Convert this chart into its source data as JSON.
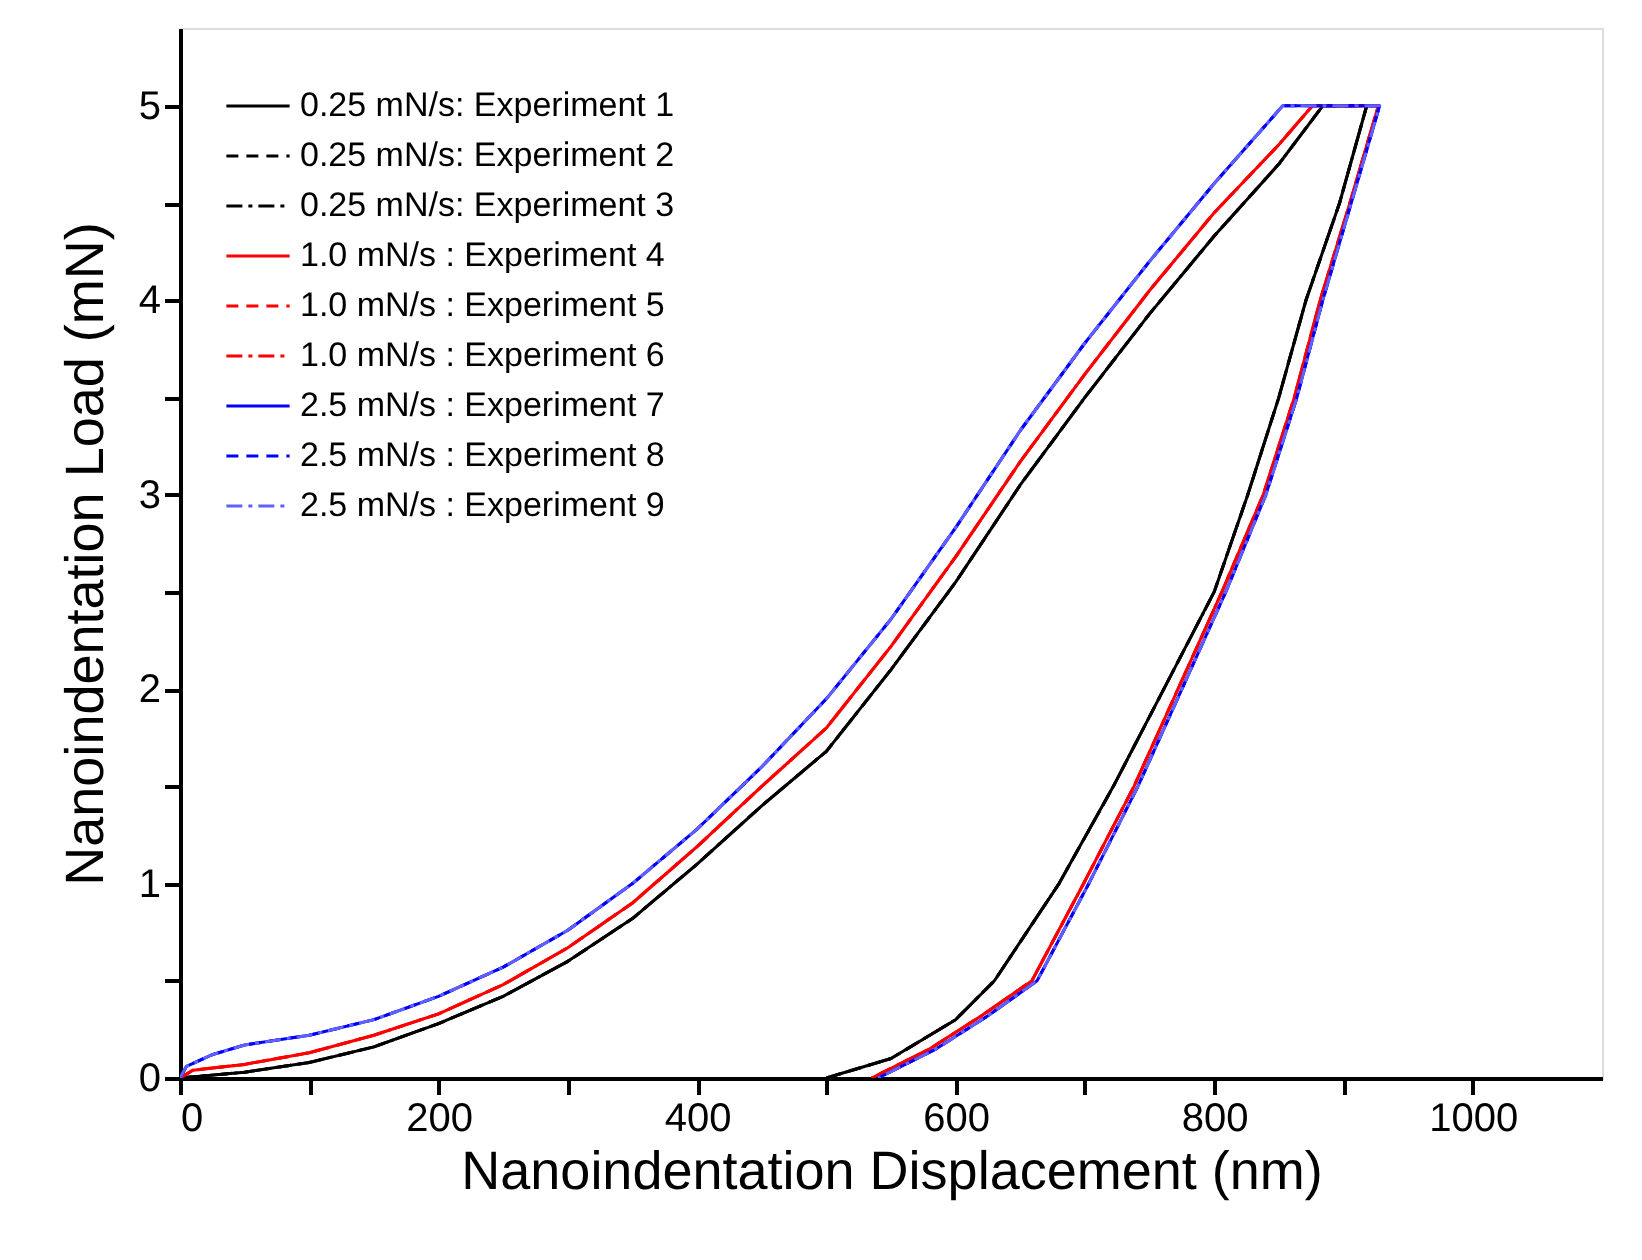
{
  "chart_data": {
    "type": "line",
    "xlabel": "Nanoindentation Displacement (nm)",
    "ylabel": "Nanoindentation Load (mN)",
    "xlim": [
      0,
      1100
    ],
    "ylim": [
      0,
      5.4
    ],
    "xticks": [
      0,
      {
        "value": 100,
        "label": null
      },
      200,
      {
        "value": 300,
        "label": null
      },
      400,
      {
        "value": 500,
        "label": null
      },
      600,
      {
        "value": 700,
        "label": null
      },
      800,
      {
        "value": 900,
        "label": null
      },
      1000
    ],
    "yticks": [
      0,
      {
        "value": 0.5,
        "label": null
      },
      1,
      {
        "value": 1.5,
        "label": null
      },
      2,
      {
        "value": 2.5,
        "label": null
      },
      3,
      {
        "value": 3.5,
        "label": null
      },
      4,
      {
        "value": 4.5,
        "label": null
      },
      5
    ],
    "grid": false,
    "legend": "top left",
    "marker": "none",
    "series": [
      {
        "name": "0.25 mN/s: Experiment 1",
        "color": "#000000",
        "line_style": "solid",
        "x": [
          0,
          50,
          100,
          150,
          200,
          250,
          300,
          350,
          400,
          450,
          500,
          550,
          600,
          650,
          700,
          750,
          800,
          850,
          884,
          918,
          897,
          871,
          850,
          826,
          800,
          761,
          722,
          680,
          630,
          600,
          550,
          500
        ],
        "values": [
          0,
          0.03,
          0.08,
          0.16,
          0.28,
          0.42,
          0.6,
          0.82,
          1.1,
          1.4,
          1.68,
          2.1,
          2.55,
          3.05,
          3.5,
          3.93,
          4.33,
          4.7,
          5.0,
          5.0,
          4.5,
          4.0,
          3.5,
          3.0,
          2.5,
          2.0,
          1.5,
          1.0,
          0.5,
          0.3,
          0.1,
          0
        ]
      },
      {
        "name": "0.25 mN/s: Experiment 2",
        "color": "#000000",
        "line_style": "dashed",
        "x": [
          0,
          50,
          100,
          150,
          200,
          250,
          300,
          350,
          400,
          450,
          500,
          550,
          600,
          650,
          700,
          750,
          800,
          850,
          884,
          918,
          897,
          871,
          850,
          826,
          800,
          761,
          722,
          680,
          630,
          600,
          550,
          500
        ],
        "values": [
          0,
          0.03,
          0.08,
          0.16,
          0.28,
          0.42,
          0.6,
          0.82,
          1.1,
          1.4,
          1.68,
          2.1,
          2.55,
          3.05,
          3.5,
          3.93,
          4.33,
          4.7,
          5.0,
          5.0,
          4.5,
          4.0,
          3.5,
          3.0,
          2.5,
          2.0,
          1.5,
          1.0,
          0.5,
          0.3,
          0.1,
          0
        ]
      },
      {
        "name": "0.25 mN/s: Experiment 3",
        "color": "#000000",
        "line_style": "dashdot",
        "x": [
          0,
          50,
          100,
          150,
          200,
          250,
          300,
          350,
          400,
          450,
          500,
          550,
          600,
          650,
          700,
          750,
          800,
          850,
          884,
          918,
          897,
          871,
          850,
          826,
          800,
          761,
          722,
          680,
          630,
          600,
          550,
          500
        ],
        "values": [
          0,
          0.03,
          0.08,
          0.16,
          0.28,
          0.42,
          0.6,
          0.82,
          1.1,
          1.4,
          1.68,
          2.1,
          2.55,
          3.05,
          3.5,
          3.93,
          4.33,
          4.7,
          5.0,
          5.0,
          4.5,
          4.0,
          3.5,
          3.0,
          2.5,
          2.0,
          1.5,
          1.0,
          0.5,
          0.3,
          0.1,
          0
        ]
      },
      {
        "name": "1.0 mN/s  : Experiment 4",
        "color": "#ff0000",
        "line_style": "solid",
        "x": [
          0,
          10,
          50,
          100,
          150,
          200,
          250,
          300,
          350,
          400,
          450,
          500,
          550,
          600,
          650,
          700,
          750,
          800,
          850,
          876,
          927,
          905,
          882,
          862,
          838,
          806,
          772,
          738,
          699,
          659,
          620,
          580,
          535
        ],
        "values": [
          0,
          0.04,
          0.07,
          0.13,
          0.22,
          0.33,
          0.48,
          0.67,
          0.9,
          1.19,
          1.5,
          1.8,
          2.22,
          2.68,
          3.17,
          3.62,
          4.05,
          4.45,
          4.8,
          5.0,
          5.0,
          4.5,
          4.0,
          3.5,
          3.0,
          2.5,
          2.0,
          1.5,
          1.0,
          0.5,
          0.32,
          0.15,
          0
        ]
      },
      {
        "name": "1.0 mN/s  : Experiment 5",
        "color": "#ff0000",
        "line_style": "dashed",
        "x": [
          0,
          10,
          50,
          100,
          150,
          200,
          250,
          300,
          350,
          400,
          450,
          500,
          550,
          600,
          650,
          700,
          750,
          800,
          850,
          876,
          927,
          905,
          882,
          862,
          838,
          806,
          772,
          738,
          699,
          659,
          620,
          580,
          535
        ],
        "values": [
          0,
          0.04,
          0.07,
          0.13,
          0.22,
          0.33,
          0.48,
          0.67,
          0.9,
          1.19,
          1.5,
          1.8,
          2.22,
          2.68,
          3.17,
          3.62,
          4.05,
          4.45,
          4.8,
          5.0,
          5.0,
          4.5,
          4.0,
          3.5,
          3.0,
          2.5,
          2.0,
          1.5,
          1.0,
          0.5,
          0.32,
          0.15,
          0
        ]
      },
      {
        "name": "1.0 mN/s  : Experiment 6",
        "color": "#ff0000",
        "line_style": "dashdot",
        "x": [
          0,
          10,
          50,
          100,
          150,
          200,
          250,
          300,
          350,
          400,
          450,
          500,
          550,
          600,
          650,
          700,
          750,
          800,
          850,
          876,
          927,
          905,
          882,
          862,
          838,
          806,
          772,
          738,
          699,
          659,
          620,
          580,
          535
        ],
        "values": [
          0,
          0.04,
          0.07,
          0.13,
          0.22,
          0.33,
          0.48,
          0.67,
          0.9,
          1.19,
          1.5,
          1.8,
          2.22,
          2.68,
          3.17,
          3.62,
          4.05,
          4.45,
          4.8,
          5.0,
          5.0,
          4.5,
          4.0,
          3.5,
          3.0,
          2.5,
          2.0,
          1.5,
          1.0,
          0.5,
          0.32,
          0.15,
          0
        ]
      },
      {
        "name": "2.5 mN/s  : Experiment 7",
        "color": "#0000ff",
        "line_style": "solid",
        "x": [
          0,
          5,
          25,
          50,
          100,
          150,
          200,
          250,
          300,
          350,
          400,
          450,
          500,
          550,
          600,
          650,
          700,
          750,
          800,
          853,
          928,
          906,
          884,
          864,
          840,
          809,
          775,
          741,
          703,
          663,
          625,
          585,
          540
        ],
        "values": [
          0,
          0.06,
          0.12,
          0.17,
          0.22,
          0.3,
          0.42,
          0.57,
          0.76,
          1.0,
          1.28,
          1.6,
          1.95,
          2.36,
          2.83,
          3.33,
          3.78,
          4.2,
          4.6,
          5.0,
          5.0,
          4.5,
          4.0,
          3.5,
          3.0,
          2.5,
          2.0,
          1.5,
          1.0,
          0.5,
          0.32,
          0.15,
          0
        ]
      },
      {
        "name": "2.5 mN/s  : Experiment 8",
        "color": "#0000ff",
        "line_style": "dashed",
        "x": [
          0,
          5,
          25,
          50,
          100,
          150,
          200,
          250,
          300,
          350,
          400,
          450,
          500,
          550,
          600,
          650,
          700,
          750,
          800,
          853,
          928,
          906,
          884,
          864,
          840,
          809,
          775,
          741,
          703,
          663,
          625,
          585,
          540
        ],
        "values": [
          0,
          0.06,
          0.12,
          0.17,
          0.22,
          0.3,
          0.42,
          0.57,
          0.76,
          1.0,
          1.28,
          1.6,
          1.95,
          2.36,
          2.83,
          3.33,
          3.78,
          4.2,
          4.6,
          5.0,
          5.0,
          4.5,
          4.0,
          3.5,
          3.0,
          2.5,
          2.0,
          1.5,
          1.0,
          0.5,
          0.32,
          0.15,
          0
        ]
      },
      {
        "name": "2.5 mN/s  : Experiment 9",
        "color": "#6060ff",
        "line_style": "dashdot",
        "x": [
          0,
          5,
          25,
          50,
          100,
          150,
          200,
          250,
          300,
          350,
          400,
          450,
          500,
          550,
          600,
          650,
          700,
          750,
          800,
          853,
          928,
          906,
          884,
          864,
          840,
          809,
          775,
          741,
          703,
          663,
          625,
          585,
          540
        ],
        "values": [
          0,
          0.06,
          0.12,
          0.17,
          0.22,
          0.3,
          0.42,
          0.57,
          0.76,
          1.0,
          1.28,
          1.6,
          1.95,
          2.36,
          2.83,
          3.33,
          3.78,
          4.2,
          4.6,
          5.0,
          5.0,
          4.5,
          4.0,
          3.5,
          3.0,
          2.5,
          2.0,
          1.5,
          1.0,
          0.5,
          0.32,
          0.15,
          0
        ]
      }
    ]
  }
}
